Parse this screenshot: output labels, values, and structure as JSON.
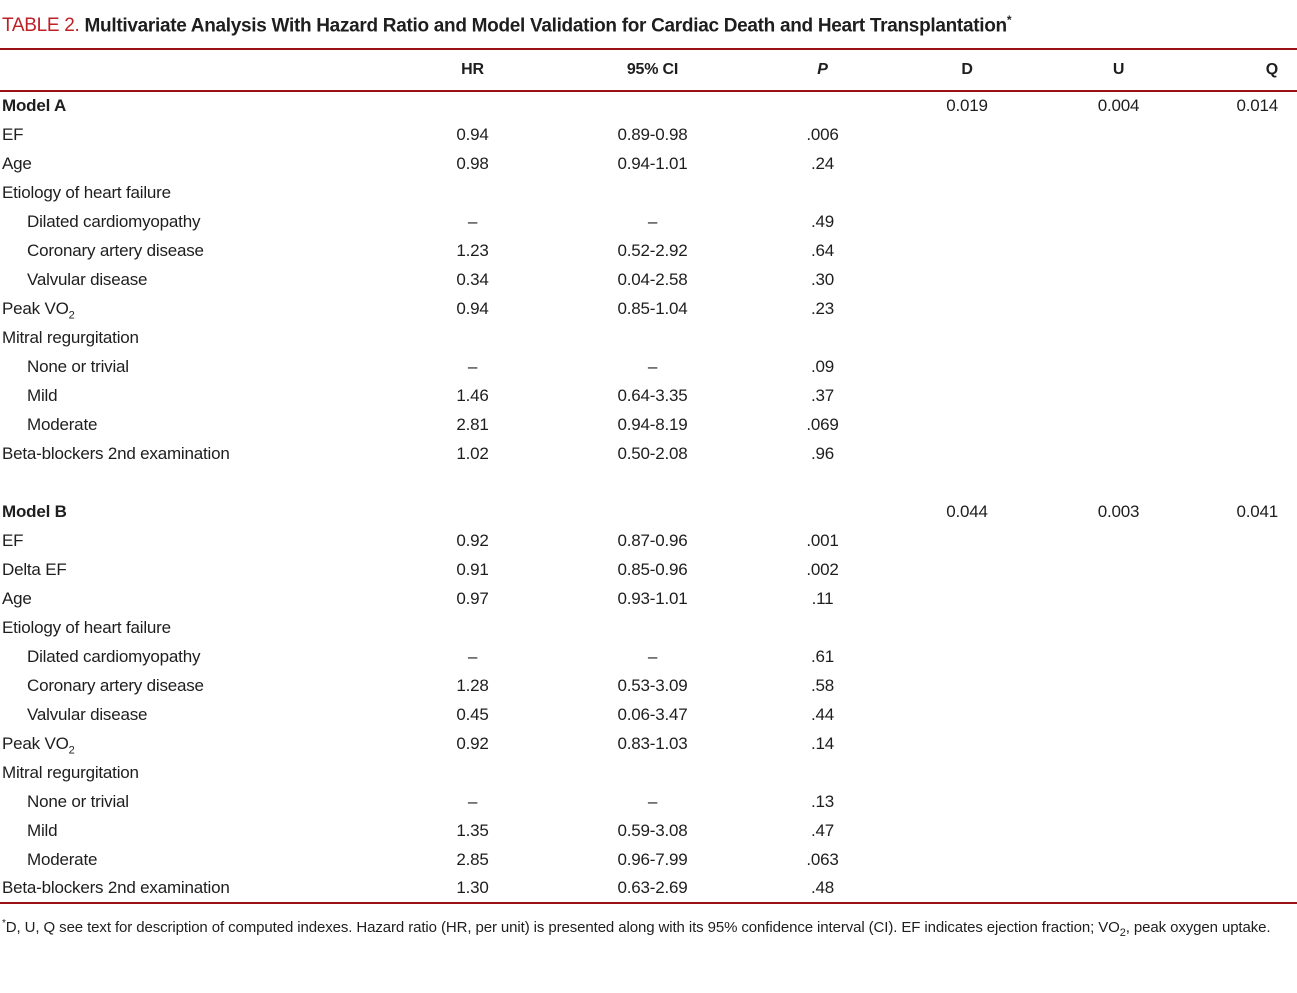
{
  "page": {
    "background": "#ffffff",
    "text_color": "#1e1e1e",
    "accent_red": "#be2026",
    "rule_red": "#9a1115"
  },
  "title": {
    "label": "TABLE 2.",
    "text": "Multivariate Analysis With Hazard Ratio and Model Validation for Cardiac Death and Heart Transplantation",
    "marker": "*"
  },
  "header": {
    "variable": "",
    "hr": "HR",
    "ci": "95% CI",
    "p": "P",
    "d": "D",
    "u": "U",
    "q": "Q"
  },
  "sections": [
    {
      "name": "Model A",
      "validation": {
        "d": "0.019",
        "u": "0.004",
        "q": "0.014"
      },
      "rows": [
        {
          "label": [
            "EF"
          ],
          "indent": 0,
          "hr": "0.94",
          "ci": "0.89-0.98",
          "p": ".006"
        },
        {
          "label": [
            "Age"
          ],
          "indent": 0,
          "hr": "0.98",
          "ci": "0.94-1.01",
          "p": ".24"
        },
        {
          "label": [
            "Etiology of heart failure"
          ],
          "indent": 0,
          "hr": "",
          "ci": "",
          "p": ""
        },
        {
          "label": [
            "Dilated cardiomyopathy"
          ],
          "indent": 1,
          "hr": "–",
          "ci": "–",
          "p": ".49"
        },
        {
          "label": [
            "Coronary artery disease"
          ],
          "indent": 1,
          "hr": "1.23",
          "ci": "0.52-2.92",
          "p": ".64"
        },
        {
          "label": [
            "Valvular disease"
          ],
          "indent": 1,
          "hr": "0.34",
          "ci": "0.04-2.58",
          "p": ".30"
        },
        {
          "label": [
            "Peak VO",
            {
              "sub": "2"
            }
          ],
          "indent": 0,
          "hr": "0.94",
          "ci": "0.85-1.04",
          "p": ".23"
        },
        {
          "label": [
            "Mitral regurgitation"
          ],
          "indent": 0,
          "hr": "",
          "ci": "",
          "p": ""
        },
        {
          "label": [
            "None or trivial"
          ],
          "indent": 1,
          "hr": "–",
          "ci": "–",
          "p": ".09"
        },
        {
          "label": [
            "Mild"
          ],
          "indent": 1,
          "hr": "1.46",
          "ci": "0.64-3.35",
          "p": ".37"
        },
        {
          "label": [
            "Moderate"
          ],
          "indent": 1,
          "hr": "2.81",
          "ci": "0.94-8.19",
          "p": ".069"
        },
        {
          "label": [
            "Beta-blockers 2nd examination"
          ],
          "indent": 0,
          "hr": "1.02",
          "ci": "0.50-2.08",
          "p": ".96"
        }
      ]
    },
    {
      "name": "Model B",
      "validation": {
        "d": "0.044",
        "u": "0.003",
        "q": "0.041"
      },
      "rows": [
        {
          "label": [
            "EF"
          ],
          "indent": 0,
          "hr": "0.92",
          "ci": "0.87-0.96",
          "p": ".001"
        },
        {
          "label": [
            "Delta EF"
          ],
          "indent": 0,
          "hr": "0.91",
          "ci": "0.85-0.96",
          "p": ".002"
        },
        {
          "label": [
            "Age"
          ],
          "indent": 0,
          "hr": "0.97",
          "ci": "0.93-1.01",
          "p": ".11"
        },
        {
          "label": [
            "Etiology of heart failure"
          ],
          "indent": 0,
          "hr": "",
          "ci": "",
          "p": ""
        },
        {
          "label": [
            "Dilated cardiomyopathy"
          ],
          "indent": 1,
          "hr": "–",
          "ci": "–",
          "p": ".61"
        },
        {
          "label": [
            "Coronary artery disease"
          ],
          "indent": 1,
          "hr": "1.28",
          "ci": "0.53-3.09",
          "p": ".58"
        },
        {
          "label": [
            "Valvular disease"
          ],
          "indent": 1,
          "hr": "0.45",
          "ci": "0.06-3.47",
          "p": ".44"
        },
        {
          "label": [
            "Peak VO",
            {
              "sub": "2"
            }
          ],
          "indent": 0,
          "hr": "0.92",
          "ci": "0.83-1.03",
          "p": ".14"
        },
        {
          "label": [
            "Mitral regurgitation"
          ],
          "indent": 0,
          "hr": "",
          "ci": "",
          "p": ""
        },
        {
          "label": [
            "None or trivial"
          ],
          "indent": 1,
          "hr": "–",
          "ci": "–",
          "p": ".13"
        },
        {
          "label": [
            "Mild"
          ],
          "indent": 1,
          "hr": "1.35",
          "ci": "0.59-3.08",
          "p": ".47"
        },
        {
          "label": [
            "Moderate"
          ],
          "indent": 1,
          "hr": "2.85",
          "ci": "0.96-7.99",
          "p": ".063"
        },
        {
          "label": [
            "Beta-blockers 2nd examination"
          ],
          "indent": 0,
          "hr": "1.30",
          "ci": "0.63-2.69",
          "p": ".48"
        }
      ]
    }
  ],
  "footnote": {
    "marker": "*",
    "part1": "D, U, Q see text for description of computed indexes. Hazard ratio (HR, per unit) is presented along with its 95% confidence interval (CI). EF indicates ejection fraction; VO",
    "sub": "2",
    "part2": ", peak oxygen uptake."
  }
}
